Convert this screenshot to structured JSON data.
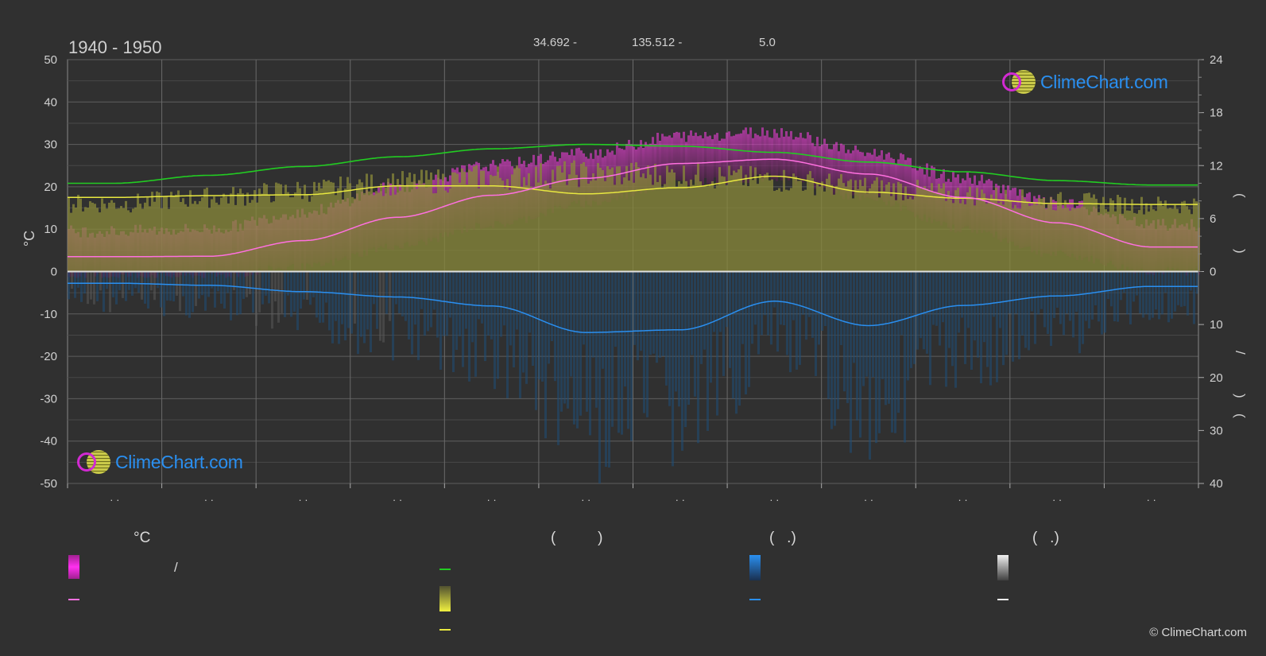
{
  "header": {
    "period": "1940 - 1950",
    "lat": "34.692 -",
    "lon": "135.512 -",
    "elev": "5.0"
  },
  "branding": {
    "top_logo_text": "ClimeChart.com",
    "bottom_logo_text": "ClimeChart.com",
    "copyright": "© ClimeChart.com"
  },
  "axes": {
    "left_unit": "°C",
    "left_ticks": [
      50,
      40,
      30,
      20,
      10,
      0,
      -10,
      -20,
      -30,
      -40,
      -50
    ],
    "right_top_ticks": [
      24,
      18,
      12,
      6,
      0
    ],
    "right_bottom_ticks": [
      10,
      20,
      30,
      40
    ],
    "right_label_parts": [
      "(",
      ")",
      "/",
      "(",
      ")"
    ],
    "month_labels": [
      "· ·",
      "· ·",
      "· ·",
      "· ·",
      "· ·",
      "· ·",
      "· ·",
      "· ·",
      "· ·",
      "· ·",
      "· ·",
      "· ·"
    ]
  },
  "legend": {
    "col1_head": "°C",
    "col1_row1_sep": "/",
    "col2_head": "(          )",
    "col3_head": "(   .)",
    "col4_head": "(   .)"
  },
  "colors": {
    "background": "#303030",
    "daylight": "#22cc22",
    "sunshine": "#e8e840",
    "temp_mean": "#ff70e0",
    "temp_band": "#e0209c",
    "precip": "#2a8ff0",
    "grid": "#6a6a6a"
  },
  "chart_data": {
    "type": "area",
    "title": "1940 - 1950",
    "ylabel": "°C",
    "ylim": [
      -50,
      50
    ],
    "y2lim_top": [
      0,
      24
    ],
    "y2lim_bottom": [
      0,
      40
    ],
    "x_months": [
      1,
      2,
      3,
      4,
      5,
      6,
      7,
      8,
      9,
      10,
      11,
      12
    ],
    "series": [
      {
        "name": "",
        "key": "temp_mean",
        "values": [
          3.5,
          3.6,
          7.3,
          12.8,
          18.0,
          22.0,
          25.5,
          26.5,
          23.0,
          17.5,
          11.5,
          5.8
        ]
      },
      {
        "name": "",
        "key": "daylight_hours",
        "values": [
          10.0,
          10.9,
          11.9,
          13.0,
          13.9,
          14.4,
          14.2,
          13.5,
          12.4,
          11.3,
          10.3,
          9.8
        ]
      },
      {
        "name": "",
        "key": "sunshine_hours",
        "values": [
          8.4,
          8.6,
          8.7,
          9.7,
          9.7,
          8.8,
          9.5,
          10.8,
          9.0,
          8.3,
          7.7,
          7.6
        ]
      },
      {
        "name": "",
        "key": "precip_mm",
        "values": [
          2.2,
          2.6,
          3.8,
          4.8,
          6.5,
          11.5,
          11.0,
          5.6,
          10.2,
          6.4,
          4.6,
          2.8
        ]
      }
    ],
    "temp_band_max": [
      9.5,
      10,
      14,
      20,
      25,
      28,
      32,
      33,
      28,
      22,
      16,
      11
    ],
    "temp_band_min": [
      -1,
      -1,
      1,
      6,
      11,
      16,
      21,
      22,
      17,
      10,
      4,
      0
    ],
    "grid": true
  }
}
